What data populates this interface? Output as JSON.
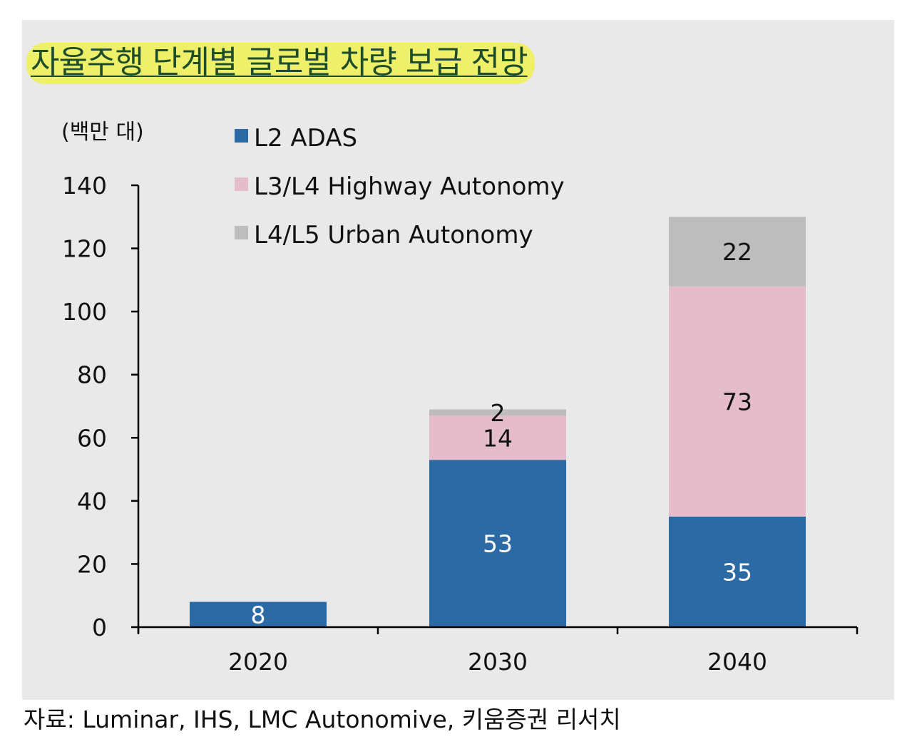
{
  "title": "자율주행 단계별 글로벌 차량 보급 전망",
  "source": "자료: Luminar, IHS, LMC Autonomive, 키움증권 리서치",
  "colors": {
    "l2": "#2c6aa6",
    "l3": "#e5bcca",
    "l4": "#bdbdbd",
    "panel": "#e9e9ea",
    "title_highlight": "#eef06a"
  },
  "chart_data": {
    "type": "bar",
    "stacked": true,
    "unit_label": "(백만 대)",
    "categories": [
      "2020",
      "2030",
      "2040"
    ],
    "ylim": [
      0,
      140
    ],
    "yticks": [
      0,
      20,
      40,
      60,
      80,
      100,
      120,
      140
    ],
    "legend_position": "top-left",
    "series": [
      {
        "name": "L2 ADAS",
        "color": "#2c6aa6",
        "label_color": "#ffffff",
        "values": [
          8,
          53,
          35
        ],
        "labels": [
          "8",
          "53",
          "35"
        ]
      },
      {
        "name": "L3/L4 Highway Autonomy",
        "color": "#e5bcca",
        "label_color": "#111111",
        "values": [
          0,
          14,
          73
        ],
        "labels": [
          "",
          "14",
          "73"
        ]
      },
      {
        "name": "L4/L5 Urban Autonomy",
        "color": "#bdbdbd",
        "label_color": "#111111",
        "values": [
          0,
          2,
          22
        ],
        "labels": [
          "",
          "2",
          "22"
        ]
      }
    ]
  }
}
